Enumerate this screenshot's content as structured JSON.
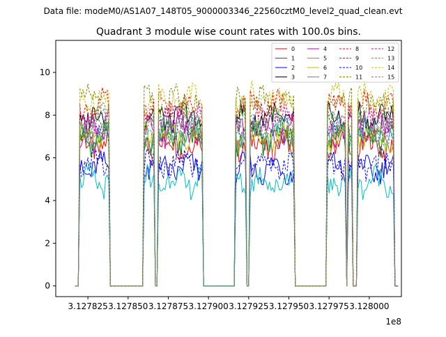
{
  "header": {
    "suptitle": "Data file: modeM0/AS1A07_148T05_9000003346_22560cztM0_level2_quad_clean.evt"
  },
  "chart_data": {
    "type": "line",
    "title": "Quadrant 3 module wise count rates with 100.0s bins.",
    "xlabel": "",
    "ylabel": "",
    "x_offset_label": "1e8",
    "xlim": [
      312780500.0,
      312802000.0
    ],
    "ylim": [
      -0.5,
      11.5
    ],
    "xticks": [
      312782500.0,
      312785000.0,
      312787500.0,
      312790000.0,
      312792500.0,
      312795000.0,
      312797500.0,
      312800000.0
    ],
    "xtick_labels": [
      "3.127825",
      "3.127850",
      "3.127875",
      "3.127900",
      "3.127925",
      "3.127950",
      "3.127975",
      "3.128000"
    ],
    "yticks": [
      0,
      2,
      4,
      6,
      8,
      10
    ],
    "ytick_labels": [
      "0",
      "2",
      "4",
      "6",
      "8",
      "10"
    ],
    "grid": false,
    "legend_position": "top-right",
    "legend_columns": 4,
    "segments": [
      {
        "start": 312782000.0,
        "end": 312783800.0
      },
      {
        "start": 312786000.0,
        "end": 312786600.0
      },
      {
        "start": 312786900.0,
        "end": 312789600.0
      },
      {
        "start": 312791700.0,
        "end": 312792300.0
      },
      {
        "start": 312792600.0,
        "end": 312795300.0
      },
      {
        "start": 312797400.0,
        "end": 312798500.0
      },
      {
        "start": 312798700.0,
        "end": 312798900.0
      },
      {
        "start": 312799300.0,
        "end": 312801500.0
      }
    ],
    "series": [
      {
        "name": "0",
        "color": "#ff0000",
        "style": "solid",
        "level": 6.6
      },
      {
        "name": "1",
        "color": "#008000",
        "style": "solid",
        "level": 6.9
      },
      {
        "name": "2",
        "color": "#0000ff",
        "style": "solid",
        "level": 5.5
      },
      {
        "name": "3",
        "color": "#000000",
        "style": "solid",
        "level": 7.9
      },
      {
        "name": "4",
        "color": "#bf00bf",
        "style": "solid",
        "level": 7.3
      },
      {
        "name": "5",
        "color": "#00bfbf",
        "style": "solid",
        "level": 4.9
      },
      {
        "name": "6",
        "color": "#bfbf00",
        "style": "solid",
        "level": 7.0
      },
      {
        "name": "7",
        "color": "#808080",
        "style": "solid",
        "level": 7.1
      },
      {
        "name": "8",
        "color": "#ff0000",
        "style": "dashed",
        "level": 8.4
      },
      {
        "name": "9",
        "color": "#008000",
        "style": "dashed",
        "level": 7.5
      },
      {
        "name": "10",
        "color": "#0000ff",
        "style": "dashed",
        "level": 5.7
      },
      {
        "name": "11",
        "color": "#808000",
        "style": "dashed",
        "level": 8.6
      },
      {
        "name": "12",
        "color": "#bf00bf",
        "style": "dashed",
        "level": 7.8
      },
      {
        "name": "13",
        "color": "#00bfbf",
        "style": "dashed",
        "level": 7.2
      },
      {
        "name": "14",
        "color": "#bfbf00",
        "style": "dashed",
        "level": 8.8
      },
      {
        "name": "15",
        "color": "#808080",
        "style": "dashed",
        "level": 7.6
      }
    ]
  }
}
